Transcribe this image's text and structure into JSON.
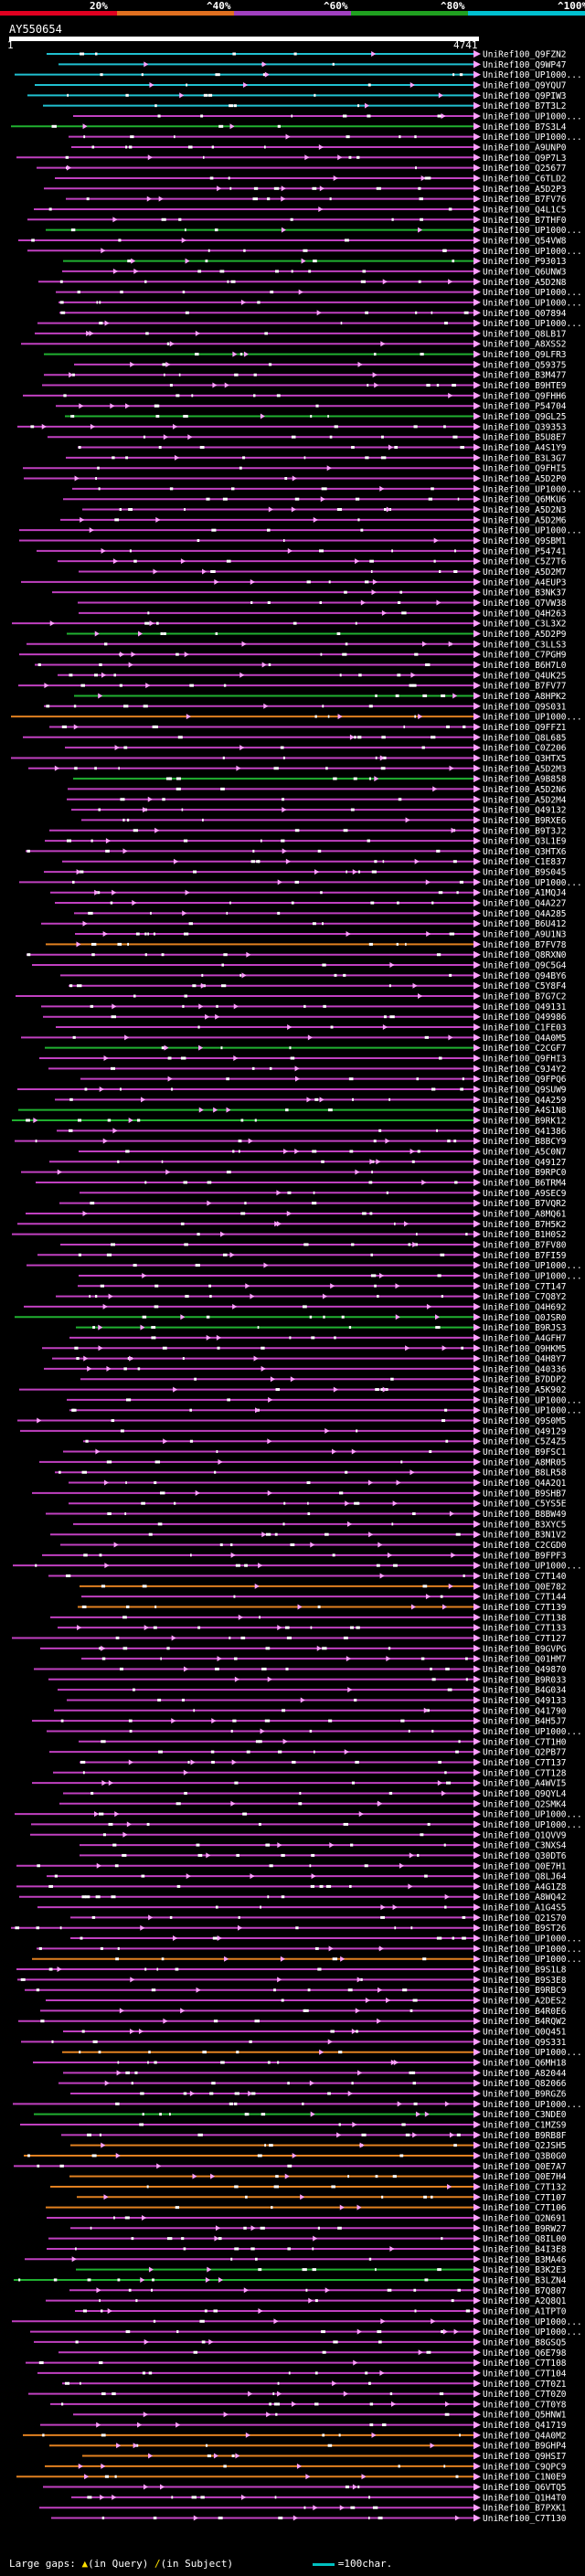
{
  "chart_data": {
    "type": "alignment-overview",
    "legend": [
      {
        "label": "20%",
        "color": "#e00020"
      },
      {
        "label": "^40%",
        "color": "#e07020"
      },
      {
        "label": "^60%",
        "color": "#a040c0"
      },
      {
        "label": "^80%",
        "color": "#20a020"
      },
      {
        "label": "^100%",
        "color": "#00c0d0"
      }
    ],
    "query_name": "AY550654",
    "query_start": "1",
    "query_end": "4741",
    "footer": {
      "large_gaps": "Large gaps:",
      "in_query": "(in Query)",
      "in_subject": "(in Subject)",
      "scale_note": "=100char."
    },
    "hits": [
      "UniRef100_Q9FZN2",
      "UniRef100_Q9WP47",
      "UniRef100_UP1000...",
      "UniRef100_Q9YQU7",
      "UniRef100_Q9PIW3",
      "UniRef100_B7T3L2",
      "UniRef100_UP1000...",
      "UniRef100_B7S3L4",
      "UniRef100_UP1000...",
      "UniRef100_A9UNP0",
      "UniRef100_Q9P7L3",
      "UniRef100_Q25677",
      "UniRef100_C6TLD2",
      "UniRef100_A5D2P3",
      "UniRef100_B7FV76",
      "UniRef100_Q4L1C5",
      "UniRef100_B7THF0",
      "UniRef100_UP1000...",
      "UniRef100_Q54VW8",
      "UniRef100_UP1000...",
      "UniRef100_P93013",
      "UniRef100_Q6UNW3",
      "UniRef100_A5D2N8",
      "UniRef100_UP1000...",
      "UniRef100_UP1000...",
      "UniRef100_Q07894",
      "UniRef100_UP1000...",
      "UniRef100_Q8LB17",
      "UniRef100_A8XSS2",
      "UniRef100_Q9LFR3",
      "UniRef100_Q59375",
      "UniRef100_B3M477",
      "UniRef100_B9HTE9",
      "UniRef100_Q9FHH6",
      "UniRef100_P54704",
      "UniRef100_Q9GL25",
      "UniRef100_Q39353",
      "UniRef100_B5U8E7",
      "UniRef100_A4S1Y9",
      "UniRef100_B3L3G7",
      "UniRef100_Q9FHI5",
      "UniRef100_A5D2P0",
      "UniRef100_UP1000...",
      "UniRef100_Q6MKU6",
      "UniRef100_A5D2N3",
      "UniRef100_A5D2M6",
      "UniRef100_UP1000...",
      "UniRef100_Q9SBM1",
      "UniRef100_P54741",
      "UniRef100_C5Z7T6",
      "UniRef100_A5D2M7",
      "UniRef100_A4EUP3",
      "UniRef100_B3NK37",
      "UniRef100_Q7VW38",
      "UniRef100_Q4H263",
      "UniRef100_C3L3X2",
      "UniRef100_A5D2P9",
      "UniRef100_C3LLS3",
      "UniRef100_C7PGH9",
      "UniRef100_B6H7L0",
      "UniRef100_Q4UK25",
      "UniRef100_B7FV77",
      "UniRef100_A8HPK2",
      "UniRef100_Q9S031",
      "UniRef100_UP1000...",
      "UniRef100_Q9FFZ1",
      "UniRef100_Q8L685",
      "UniRef100_C0Z206",
      "UniRef100_Q3HTX5",
      "UniRef100_A5D2M3",
      "UniRef100_A9B858",
      "UniRef100_A5D2N6",
      "UniRef100_A5D2M4",
      "UniRef100_Q49132",
      "UniRef100_B9RXE6",
      "UniRef100_B9T3J2",
      "UniRef100_Q3L1E9",
      "UniRef100_Q3HTX6",
      "UniRef100_C1E837",
      "UniRef100_B9S045",
      "UniRef100_UP1000...",
      "UniRef100_A1MQJ4",
      "UniRef100_Q4A227",
      "UniRef100_Q4A285",
      "UniRef100_B6U412",
      "UniRef100_A9U1N3",
      "UniRef100_B7FV78",
      "UniRef100_Q8RXN0",
      "UniRef100_Q9C5G4",
      "UniRef100_Q94BY6",
      "UniRef100_C5Y8F4",
      "UniRef100_B7G7C2",
      "UniRef100_Q49131",
      "UniRef100_Q49986",
      "UniRef100_C1FE03",
      "UniRef100_Q4A0M5",
      "UniRef100_C2CGF7",
      "UniRef100_Q9FHI3",
      "UniRef100_C9J4Y2",
      "UniRef100_Q9FPQ6",
      "UniRef100_Q9SUW9",
      "UniRef100_Q4A259",
      "UniRef100_A4S1N8",
      "UniRef100_B9RK12",
      "UniRef100_Q41386",
      "UniRef100_B8BCY9",
      "UniRef100_A5C0N7",
      "UniRef100_Q49127",
      "UniRef100_B9RPC0",
      "UniRef100_B6TRM4",
      "UniRef100_A9SEC9",
      "UniRef100_B7VQR2",
      "UniRef100_A8MQ61",
      "UniRef100_B7H5K2",
      "UniRef100_B1H0S2",
      "UniRef100_B7FV80",
      "UniRef100_B7FI59",
      "UniRef100_UP1000...",
      "UniRef100_UP1000...",
      "UniRef100_C7T147",
      "UniRef100_C7Q8Y2",
      "UniRef100_Q4H692",
      "UniRef100_Q0JSR0",
      "UniRef100_B9RJS3",
      "UniRef100_A4GFH7",
      "UniRef100_Q9HKM5",
      "UniRef100_Q4H8Y7",
      "UniRef100_Q40336",
      "UniRef100_B7DDP2",
      "UniRef100_A5K902",
      "UniRef100_UP1000...",
      "UniRef100_UP1000...",
      "UniRef100_Q9S0M5",
      "UniRef100_Q49129",
      "UniRef100_C5Z4Z5",
      "UniRef100_B9FSC1",
      "UniRef100_A8MR05",
      "UniRef100_B8LR58",
      "UniRef100_Q4A2Q1",
      "UniRef100_B9SHB7",
      "UniRef100_C5YS5E",
      "UniRef100_B8BW49",
      "UniRef100_B3XYC5",
      "UniRef100_B3N1V2",
      "UniRef100_C2CGD0",
      "UniRef100_B9FPF3",
      "UniRef100_UP1000...",
      "UniRef100_C7T140",
      "UniRef100_Q0E782",
      "UniRef100_C7T144",
      "UniRef100_C7T139",
      "UniRef100_C7T138",
      "UniRef100_C7T133",
      "UniRef100_C7T127",
      "UniRef100_B9GVPG",
      "UniRef100_Q01HM7",
      "UniRef100_Q49870",
      "UniRef100_B9R033",
      "UniRef100_B4G034",
      "UniRef100_Q49133",
      "UniRef100_Q41790",
      "UniRef100_B4H5J7",
      "UniRef100_UP1000...",
      "UniRef100_C7T1H0",
      "UniRef100_Q2PB77",
      "UniRef100_C7T137",
      "UniRef100_C7T128",
      "UniRef100_A4WVI5",
      "UniRef100_Q9QYL4",
      "UniRef100_Q2SMK4",
      "UniRef100_UP1000...",
      "UniRef100_UP1000...",
      "UniRef100_Q1QVV9",
      "UniRef100_C3NXS4",
      "UniRef100_Q30DT6",
      "UniRef100_Q0E7H1",
      "UniRef100_Q8LJ64",
      "UniRef100_A4G1Z8",
      "UniRef100_A8WQ42",
      "UniRef100_A1G4S5",
      "UniRef100_Q21S70",
      "UniRef100_B9ST26",
      "UniRef100_UP1000...",
      "UniRef100_UP1000...",
      "UniRef100_UP1000...",
      "UniRef100_B9S1L8",
      "UniRef100_B9S3E8",
      "UniRef100_B9RBC9",
      "UniRef100_A2DES2",
      "UniRef100_B4R0E6",
      "UniRef100_B4RQW2",
      "UniRef100_Q0Q451",
      "UniRef100_Q9S331",
      "UniRef100_UP1000...",
      "UniRef100_Q6MH18",
      "UniRef100_A82044",
      "UniRef100_Q82066",
      "UniRef100_B9RGZ6",
      "UniRef100_UP1000...",
      "UniRef100_C3NDE0",
      "UniRef100_C1MZS9",
      "UniRef100_B9RB8F",
      "UniRef100_Q2JSH5",
      "UniRef100_Q3B0G0",
      "UniRef100_Q0E7A7",
      "UniRef100_Q0E7H4",
      "UniRef100_C7T132",
      "UniRef100_C7T107",
      "UniRef100_C7T106",
      "UniRef100_Q2N691",
      "UniRef100_B9RW27",
      "UniRef100_Q8IL00",
      "UniRef100_B4I3E8",
      "UniRef100_B3MA46",
      "UniRef100_B3K2E3",
      "UniRef100_B3LZN4",
      "UniRef100_B7Q807",
      "UniRef100_A2Q8Q1",
      "UniRef100_A1TPT0",
      "UniRef100_UP1000...",
      "UniRef100_UP1000...",
      "UniRef100_B8GSQ5",
      "UniRef100_Q6E798",
      "UniRef100_C7T108",
      "UniRef100_C7T104",
      "UniRef100_C7T0Z1",
      "UniRef100_C7T0Z0",
      "UniRef100_C7T0Y8",
      "UniRef100_Q5HNW1",
      "UniRef100_Q41719",
      "UniRef100_Q4A0M2",
      "UniRef100_B9GHP4",
      "UniRef100_Q9HSI7",
      "UniRef100_C9QPC9",
      "UniRef100_C1N0E9",
      "UniRef100_Q6VTQ5",
      "UniRef100_Q1H4T0",
      "UniRef100_B7PXK1",
      "UniRef100_C7T130"
    ]
  }
}
